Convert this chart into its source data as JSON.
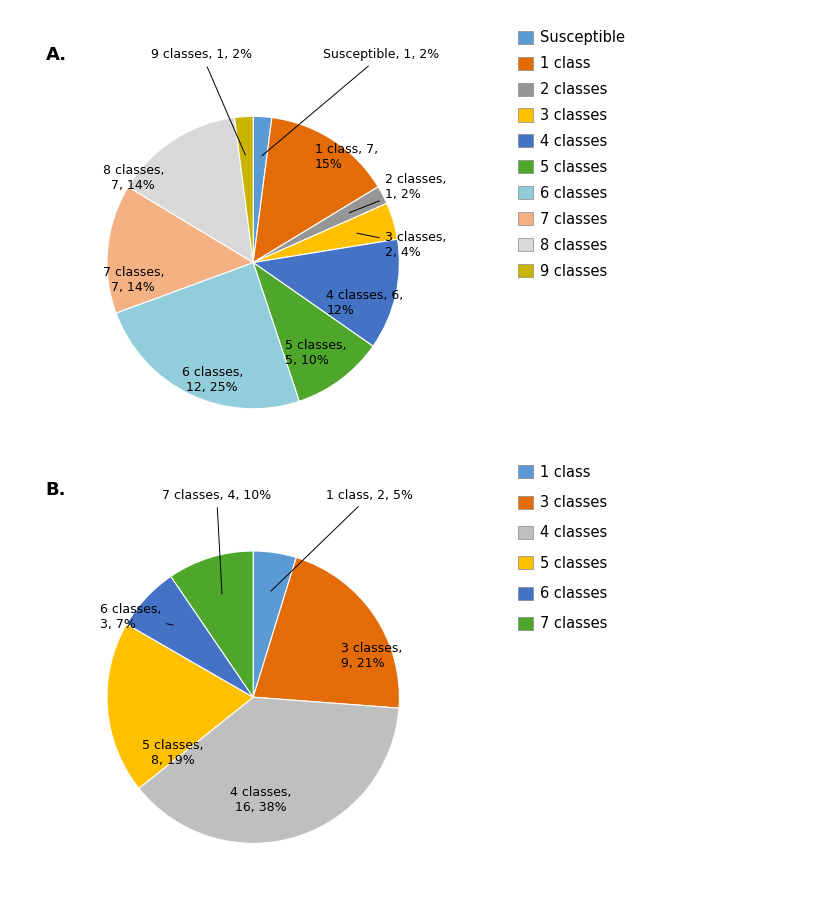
{
  "chartA": {
    "labels": [
      "Susceptible",
      "1 class",
      "2 classes",
      "3 classes",
      "4 classes",
      "5 classes",
      "6 classes",
      "7 classes",
      "8 classes",
      "9 classes"
    ],
    "values": [
      1,
      7,
      1,
      2,
      6,
      5,
      12,
      7,
      7,
      1
    ],
    "percents": [
      2,
      15,
      2,
      4,
      12,
      10,
      25,
      14,
      14,
      2
    ],
    "colors": [
      "#4472C4",
      "#E36C09",
      "#969696",
      "#FFC000",
      "#4472C4",
      "#4EA72A",
      "#92CDDC",
      "#F4B183",
      "#D9D9D9",
      "#C9B400"
    ],
    "legend_colors": [
      "#4472C4",
      "#E36C09",
      "#969696",
      "#FFC000",
      "#4472C4",
      "#4EA72A",
      "#92CDDC",
      "#F4B183",
      "#D9D9D9",
      "#C9B400"
    ],
    "legend_labels": [
      "Susceptible",
      "1 class",
      "2 classes",
      "3 classes",
      "4 classes",
      "5 classes",
      "6 classes",
      "7 classes",
      "8 classes",
      "9 classes"
    ],
    "startangle": 90
  },
  "chartB": {
    "labels": [
      "1 class",
      "3 classes",
      "4 classes",
      "5 classes",
      "6 classes",
      "7 classes"
    ],
    "values": [
      2,
      9,
      16,
      8,
      3,
      4
    ],
    "percents": [
      5,
      21,
      38,
      19,
      7,
      10
    ],
    "colors": [
      "#4472C4",
      "#E36C09",
      "#BFBFBF",
      "#FFC000",
      "#4472C4",
      "#4EA72A"
    ],
    "legend_colors": [
      "#4472C4",
      "#E36C09",
      "#BFBFBF",
      "#FFC000",
      "#4472C4",
      "#4EA72A"
    ],
    "legend_labels": [
      "1 class",
      "3 classes",
      "4 classes",
      "5 classes",
      "6 classes",
      "7 classes"
    ],
    "startangle": 90
  },
  "background_color": "#FFFFFF",
  "label_fontsize": 9,
  "legend_fontsize": 10.5,
  "panel_fontsize": 13
}
